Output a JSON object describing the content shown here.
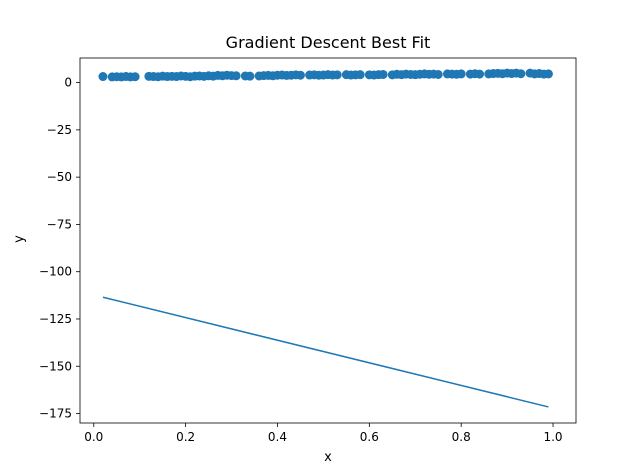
{
  "chart_data": {
    "type": "scatter",
    "title": "Gradient Descent Best Fit",
    "xlabel": "x",
    "ylabel": "y",
    "xlim": [
      -0.03,
      1.05
    ],
    "ylim": [
      -180,
      13
    ],
    "xticks": [
      0.0,
      0.2,
      0.4,
      0.6,
      0.8,
      1.0
    ],
    "xtick_labels": [
      "0.0",
      "0.2",
      "0.4",
      "0.6",
      "0.8",
      "1.0"
    ],
    "yticks": [
      0,
      -25,
      -50,
      -75,
      -100,
      -125,
      -150,
      -175
    ],
    "ytick_labels": [
      "0",
      "−25",
      "−50",
      "−75",
      "−100",
      "−125",
      "−150",
      "−175"
    ],
    "grid": false,
    "series": [
      {
        "kind": "scatter",
        "color": "#1f77b4",
        "x": [
          0.02,
          0.04,
          0.05,
          0.06,
          0.07,
          0.08,
          0.09,
          0.12,
          0.13,
          0.14,
          0.15,
          0.16,
          0.17,
          0.18,
          0.19,
          0.2,
          0.21,
          0.22,
          0.23,
          0.24,
          0.25,
          0.26,
          0.27,
          0.28,
          0.29,
          0.3,
          0.31,
          0.33,
          0.34,
          0.36,
          0.37,
          0.38,
          0.39,
          0.4,
          0.41,
          0.42,
          0.43,
          0.44,
          0.45,
          0.47,
          0.48,
          0.49,
          0.5,
          0.51,
          0.52,
          0.53,
          0.55,
          0.56,
          0.57,
          0.58,
          0.6,
          0.61,
          0.62,
          0.63,
          0.65,
          0.66,
          0.67,
          0.68,
          0.69,
          0.7,
          0.71,
          0.72,
          0.73,
          0.74,
          0.75,
          0.77,
          0.78,
          0.79,
          0.8,
          0.82,
          0.83,
          0.84,
          0.86,
          0.87,
          0.88,
          0.89,
          0.9,
          0.91,
          0.92,
          0.93,
          0.95,
          0.96,
          0.97,
          0.98,
          0.99
        ],
        "y": [
          3.2,
          3.0,
          3.1,
          3.0,
          3.2,
          3.0,
          3.1,
          3.3,
          3.2,
          3.1,
          3.4,
          3.2,
          3.3,
          3.2,
          3.5,
          3.3,
          3.1,
          3.4,
          3.5,
          3.3,
          3.6,
          3.4,
          3.8,
          3.6,
          3.9,
          3.7,
          3.6,
          3.5,
          3.4,
          3.5,
          3.7,
          3.8,
          3.6,
          3.9,
          4.0,
          3.8,
          3.9,
          4.1,
          3.9,
          4.0,
          4.1,
          3.9,
          4.0,
          4.2,
          4.0,
          4.1,
          4.2,
          4.0,
          4.1,
          4.2,
          4.1,
          4.0,
          4.2,
          4.3,
          4.1,
          4.4,
          4.2,
          4.5,
          4.3,
          4.2,
          4.4,
          4.6,
          4.4,
          4.5,
          4.3,
          4.6,
          4.5,
          4.4,
          4.6,
          4.5,
          4.7,
          4.5,
          4.6,
          4.8,
          4.9,
          4.7,
          5.0,
          4.8,
          5.0,
          4.7,
          5.0,
          4.6,
          4.8,
          4.5,
          4.6
        ]
      },
      {
        "kind": "line",
        "color": "#1f77b4",
        "x": [
          0.02,
          0.99
        ],
        "y": [
          -113.5,
          -171.5
        ]
      }
    ]
  }
}
